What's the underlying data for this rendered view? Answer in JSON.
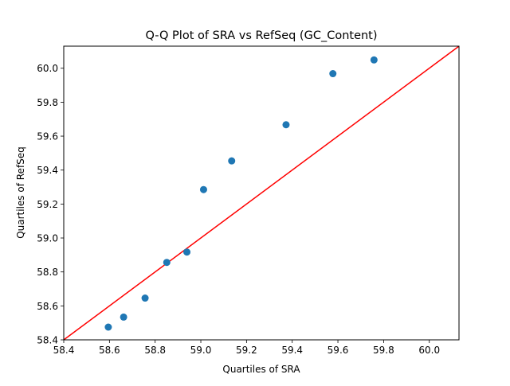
{
  "chart_data": {
    "type": "scatter",
    "title": "Q-Q Plot of SRA vs RefSeq (GC_Content)",
    "xlabel": "Quartiles of SRA",
    "ylabel": "Quartiles of RefSeq",
    "xlim": [
      58.4,
      60.13
    ],
    "ylim": [
      58.4,
      60.13
    ],
    "x_ticks": [
      58.4,
      58.6,
      58.8,
      59.0,
      59.2,
      59.4,
      59.6,
      59.8,
      60.0
    ],
    "y_ticks": [
      58.4,
      58.6,
      58.8,
      59.0,
      59.2,
      59.4,
      59.6,
      59.8,
      60.0
    ],
    "x_tick_labels": [
      "58.4",
      "58.6",
      "58.8",
      "59.0",
      "59.2",
      "59.4",
      "59.6",
      "59.8",
      "60.0"
    ],
    "y_tick_labels": [
      "58.4",
      "58.6",
      "58.8",
      "59.0",
      "59.2",
      "59.4",
      "59.6",
      "59.8",
      "60.0"
    ],
    "grid": false,
    "points": [
      {
        "x": 58.595,
        "y": 58.475
      },
      {
        "x": 58.662,
        "y": 58.534
      },
      {
        "x": 58.756,
        "y": 58.646
      },
      {
        "x": 58.851,
        "y": 58.856
      },
      {
        "x": 58.939,
        "y": 58.917
      },
      {
        "x": 59.012,
        "y": 59.285
      },
      {
        "x": 59.135,
        "y": 59.454
      },
      {
        "x": 59.373,
        "y": 59.667
      },
      {
        "x": 59.578,
        "y": 59.968
      },
      {
        "x": 59.758,
        "y": 60.049
      }
    ],
    "reference_line": {
      "x": [
        58.4,
        60.13
      ],
      "y": [
        58.4,
        60.13
      ],
      "color": "#ff0000"
    },
    "marker_color": "#1f77b4"
  }
}
